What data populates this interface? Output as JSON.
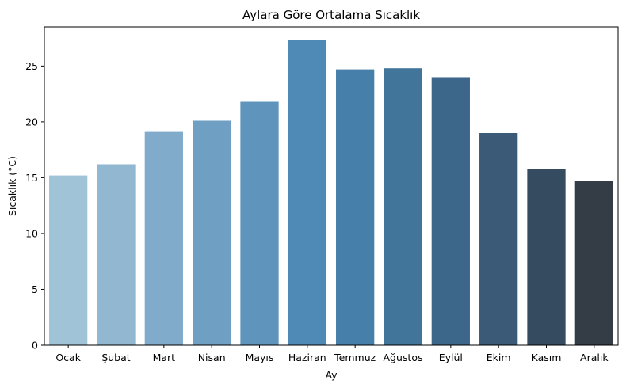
{
  "chart_data": {
    "type": "bar",
    "title": "Aylara Göre Ortalama Sıcaklık",
    "xlabel": "Ay",
    "ylabel": "Sıcaklık (°C)",
    "categories": [
      "Ocak",
      "Şubat",
      "Mart",
      "Nisan",
      "Mayıs",
      "Haziran",
      "Temmuz",
      "Ağustos",
      "Eylül",
      "Ekim",
      "Kasım",
      "Aralık"
    ],
    "values": [
      15.2,
      16.2,
      19.1,
      20.1,
      21.8,
      27.3,
      24.7,
      24.8,
      24.0,
      19.0,
      15.8,
      14.7
    ],
    "colors": [
      "#a1c3d8",
      "#91b7d1",
      "#80abca",
      "#6fa0c3",
      "#5f95bd",
      "#4f8ab7",
      "#467fa9",
      "#41759a",
      "#3d678a",
      "#3a5a77",
      "#354b5f",
      "#343c45"
    ],
    "yticks": [
      0,
      5,
      10,
      15,
      20,
      25
    ],
    "ylim": [
      0,
      28.5
    ],
    "grid": false,
    "legend": false
  }
}
